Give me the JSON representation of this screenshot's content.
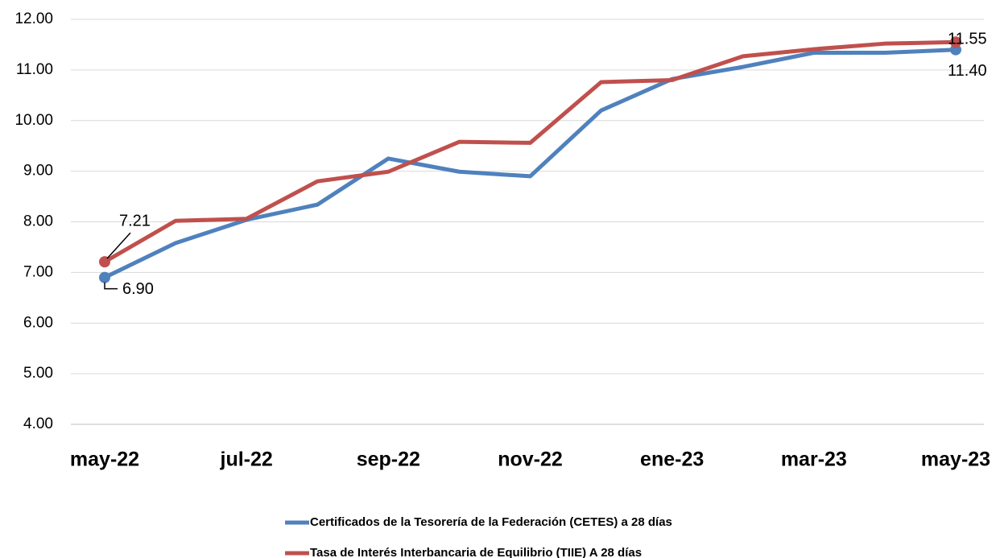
{
  "chart_data": {
    "type": "line",
    "categories": [
      "may-22",
      null,
      "jul-22",
      null,
      "sep-22",
      null,
      "nov-22",
      null,
      "ene-23",
      null,
      "mar-23",
      null,
      "may-23"
    ],
    "series": [
      {
        "name": "Certificados de la Tesorería de la Federación (CETES) a 28 días",
        "color": "#4f81bd",
        "values": [
          6.9,
          7.58,
          8.04,
          8.34,
          9.25,
          8.99,
          8.9,
          10.2,
          10.82,
          11.06,
          11.34,
          11.34,
          11.4
        ],
        "value_labels": [
          "6.90",
          null,
          null,
          null,
          null,
          null,
          null,
          null,
          null,
          null,
          null,
          null,
          "11.40"
        ]
      },
      {
        "name": "Tasa de Interés Interbancaria de Equilibrio (TIIE) A 28 días",
        "color": "#c0504d",
        "values": [
          7.21,
          8.02,
          8.06,
          8.8,
          8.99,
          9.58,
          9.56,
          10.76,
          10.8,
          11.27,
          11.41,
          11.52,
          11.55
        ],
        "value_labels": [
          "7.21",
          null,
          null,
          null,
          null,
          null,
          null,
          null,
          null,
          null,
          null,
          null,
          "11.55"
        ]
      }
    ],
    "ylim": [
      4,
      12
    ],
    "yticks": [
      {
        "value": 4,
        "label": "4.00"
      },
      {
        "value": 5,
        "label": "5.00"
      },
      {
        "value": 6,
        "label": "6.00"
      },
      {
        "value": 7,
        "label": "7.00"
      },
      {
        "value": 8,
        "label": "8.00"
      },
      {
        "value": 9,
        "label": "9.00"
      },
      {
        "value": 10,
        "label": "10.00"
      },
      {
        "value": 11,
        "label": "11.00"
      },
      {
        "value": 12,
        "label": "12.00"
      }
    ],
    "grid": true,
    "legend": "bottom"
  }
}
